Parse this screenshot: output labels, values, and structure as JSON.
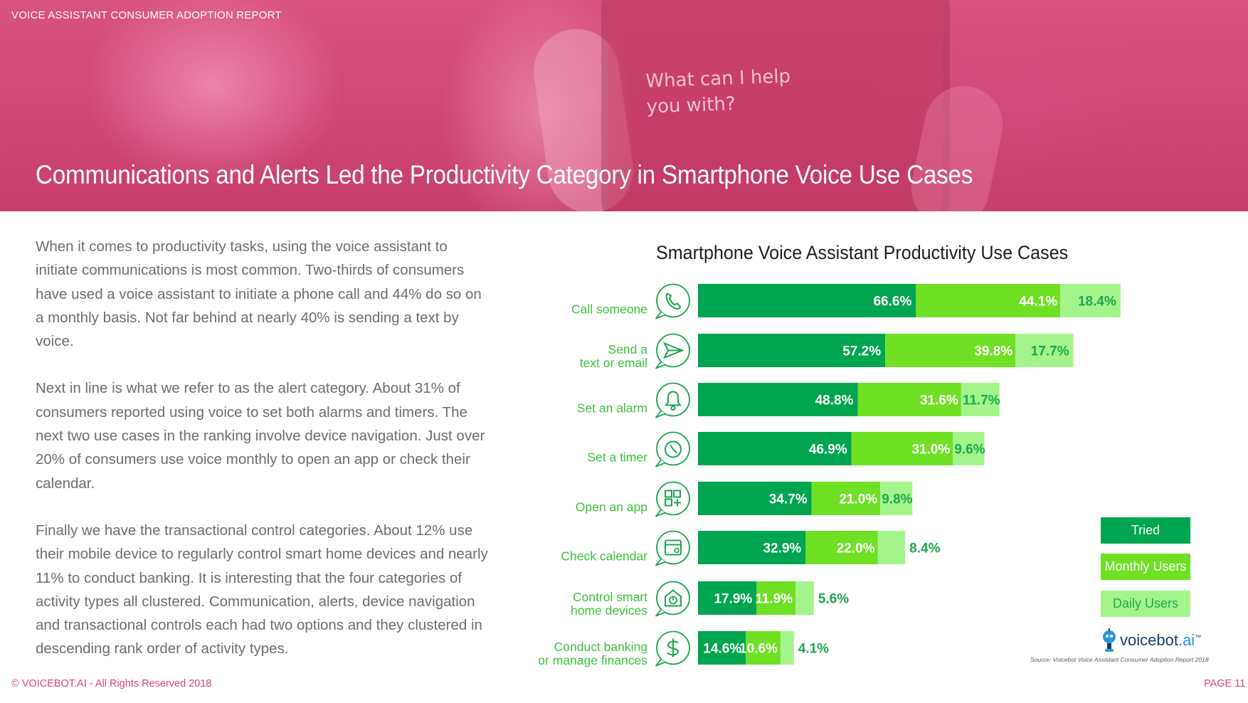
{
  "header": {
    "report_name": "VOICE ASSISTANT CONSUMER ADOPTION REPORT",
    "phone_prompt_line1": "What can I help",
    "phone_prompt_line2": "you with?",
    "title": "Communications and Alerts Led the Productivity Category in Smartphone Voice Use Cases"
  },
  "body": {
    "paragraphs": [
      "When it comes to productivity tasks, using the voice assistant to initiate communications is most common. Two-thirds of consumers have used a voice assistant to initiate a phone call and 44% do so on a monthly basis. Not far behind at nearly 40% is sending a text by voice.",
      "Next in line is what we refer to as the alert category. About 31% of consumers reported using voice to set both alarms and timers. The next two use cases in the ranking involve device navigation. Just over 20% of consumers use voice monthly to open an app or check their calendar.",
      "Finally we have the transactional control categories. About 12% use their mobile device to regularly control smart home devices and nearly 11% to conduct banking. It is interesting that the four categories of activity types all clustered. Communication, alerts, device navigation and transactional controls each had two options and they clustered in descending rank order of activity types."
    ]
  },
  "chart_data": {
    "type": "bar",
    "orientation": "horizontal",
    "layout": "overlapping",
    "title": "Smartphone Voice Assistant Productivity Use Cases",
    "categories": [
      [
        "Call someone"
      ],
      [
        "Send a",
        "text or email"
      ],
      [
        "Set an alarm"
      ],
      [
        "Set a timer"
      ],
      [
        "Open an app"
      ],
      [
        "Check calendar"
      ],
      [
        "Control smart",
        "home devices"
      ],
      [
        "Conduct banking",
        "or manage finances"
      ]
    ],
    "icons": [
      "phone-icon",
      "send-icon",
      "bell-icon",
      "timer-icon",
      "app-grid-icon",
      "calendar-icon",
      "smart-home-icon",
      "dollar-icon"
    ],
    "series": [
      {
        "name": "Tried",
        "color": "#00a54f",
        "values": [
          66.6,
          57.2,
          48.8,
          46.9,
          34.7,
          32.9,
          17.9,
          14.6
        ],
        "labels": [
          "66.6%",
          "57.2%",
          "48.8%",
          "46.9%",
          "34.7%",
          "32.9%",
          "17.9%",
          "14.6%"
        ]
      },
      {
        "name": "Monthly Users",
        "color": "#6fe024",
        "values": [
          44.1,
          39.8,
          31.6,
          31.0,
          21.0,
          22.0,
          11.9,
          10.6
        ],
        "labels": [
          "44.1%",
          "39.8%",
          "31.6%",
          "31.0%",
          "21.0%",
          "22.0%",
          "11.9%",
          "10.6%"
        ]
      },
      {
        "name": "Daily Users",
        "color": "#a3f58b",
        "values": [
          18.4,
          17.7,
          11.7,
          9.6,
          9.8,
          8.4,
          5.6,
          4.1
        ],
        "labels": [
          "18.4%",
          "17.7%",
          "11.7%",
          "9.6%",
          "9.8%",
          "8.4%",
          "5.6%",
          "4.1%"
        ]
      }
    ],
    "colors": {
      "label_green": "#1ea64f",
      "category_green": "#3cc23c",
      "icon_green": "#1aa64a"
    },
    "legend_position": "right",
    "grid": false
  },
  "chart_meta": {
    "brand_name": "voicebot",
    "brand_suffix": ".ai",
    "brand_tm": "™",
    "source": "Source: Voicebot Voice Assistant Consumer Adoption Report 2018"
  },
  "footer": {
    "copyright": "© VOICEBOT.AI - All Rights Reserved 2018",
    "page": "PAGE 11"
  }
}
